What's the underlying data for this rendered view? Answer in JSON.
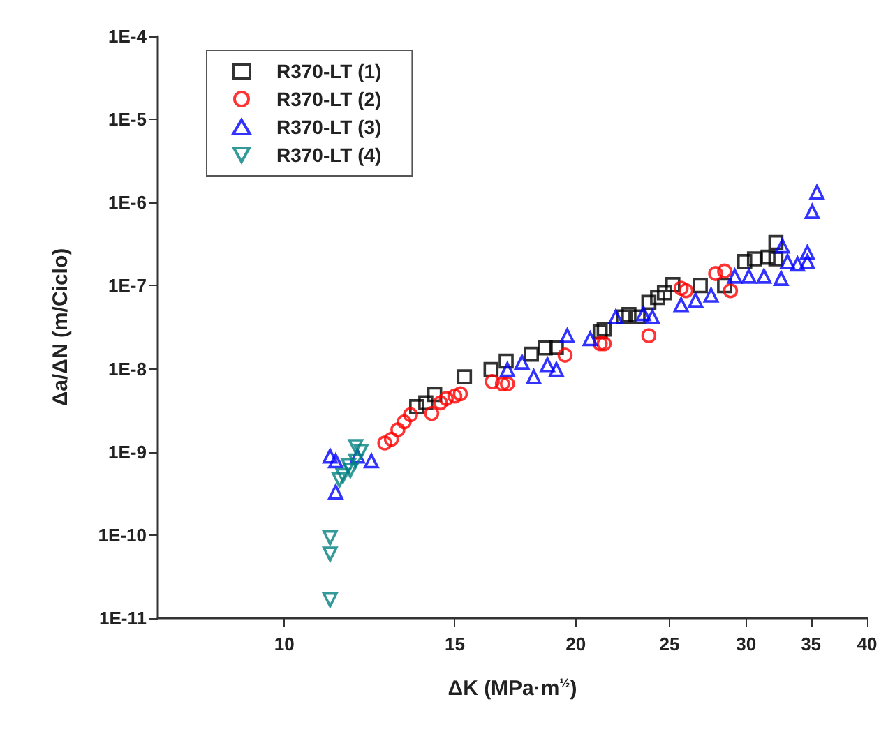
{
  "chart_data": {
    "type": "scatter",
    "xlabel": "ΔK (MPa·m$^{½}$)",
    "ylabel": "Δa/ΔN (m/Ciclo)",
    "log": "xy",
    "grid": false,
    "legend": "top left",
    "xlim": [
      7.4,
      40
    ],
    "xticks": [
      10,
      15,
      20,
      25,
      30,
      35,
      40
    ],
    "ylim": [
      1e-11,
      0.0001
    ],
    "yticks": [
      {
        "value": 1e-11,
        "label": "1E-11"
      },
      {
        "value": 1e-10,
        "label": "1E-10"
      },
      {
        "value": 1e-09,
        "label": "1E-9"
      },
      {
        "value": 1e-08,
        "label": "1E-8"
      },
      {
        "value": 1e-07,
        "label": "1E-7"
      },
      {
        "value": 1e-06,
        "label": "1E-6"
      },
      {
        "value": 1e-05,
        "label": "1E-5"
      },
      {
        "value": 0.0001,
        "label": "1E-4"
      }
    ],
    "series": [
      {
        "name": "R370-LT (1)",
        "color": "#000000",
        "marker": "square",
        "x": [
          13.7,
          14.0,
          14.3,
          15.35,
          16.35,
          16.95,
          18.0,
          18.6,
          19.1,
          21.2,
          21.4,
          22.4,
          22.7,
          23.2,
          23.8,
          24.3,
          24.7,
          25.2,
          26.9,
          28.5,
          29.9,
          30.6,
          31.6,
          32.2,
          32.2
        ],
        "values": [
          3.5e-09,
          3.9e-09,
          4.9e-09,
          8e-09,
          9.8e-09,
          1.24e-08,
          1.5e-08,
          1.78e-08,
          1.8e-08,
          2.8e-08,
          3e-08,
          4.2e-08,
          4.5e-08,
          4.2e-08,
          6.3e-08,
          7.2e-08,
          8.2e-08,
          1.03e-07,
          1e-07,
          1e-07,
          1.95e-07,
          2.1e-07,
          2.2e-07,
          3.3e-07,
          2.1e-07
        ]
      },
      {
        "name": "R370-LT (2)",
        "color": "#ff0000",
        "marker": "circle",
        "x": [
          12.7,
          12.9,
          13.1,
          13.3,
          13.5,
          14.2,
          14.5,
          14.7,
          15.0,
          15.2,
          16.4,
          16.8,
          17.0,
          19.5,
          21.2,
          21.4,
          23.8,
          25.7,
          26.0,
          27.9,
          28.5,
          28.9
        ],
        "values": [
          1.28e-09,
          1.42e-09,
          1.85e-09,
          2.3e-09,
          2.8e-09,
          2.9e-09,
          3.9e-09,
          4.4e-09,
          4.7e-09,
          5e-09,
          7e-09,
          6.6e-09,
          6.6e-09,
          1.46e-08,
          2e-08,
          2e-08,
          2.5e-08,
          9.3e-08,
          8.7e-08,
          1.4e-07,
          1.5e-07,
          8.7e-08
        ]
      },
      {
        "name": "R370-LT (3)",
        "color": "#0000ff",
        "marker": "triangle",
        "x": [
          11.15,
          11.3,
          11.3,
          11.9,
          12.3,
          17.0,
          17.6,
          18.1,
          18.7,
          19.1,
          19.6,
          20.7,
          22.0,
          23.5,
          24.0,
          25.7,
          26.6,
          27.6,
          29.2,
          30.2,
          31.3,
          32.6,
          32.7,
          33.1,
          33.9,
          34.7,
          34.7,
          35.1,
          35.5
        ],
        "values": [
          8.9e-10,
          7.8e-10,
          3.3e-10,
          8.9e-10,
          7.8e-10,
          9.8e-09,
          1.2e-08,
          8e-09,
          1.12e-08,
          9.8e-09,
          2.5e-08,
          2.3e-08,
          4.2e-08,
          4.6e-08,
          4.2e-08,
          5.9e-08,
          6.7e-08,
          7.7e-08,
          1.3e-07,
          1.3e-07,
          1.3e-07,
          1.22e-07,
          3e-07,
          1.95e-07,
          1.82e-07,
          1.95e-07,
          2.5e-07,
          7.8e-07,
          1.33e-06
        ]
      },
      {
        "name": "R370-LT (4)",
        "color": "#008080",
        "marker": "triangle_down",
        "x": [
          11.15,
          11.15,
          11.15,
          11.4,
          11.5,
          11.65,
          11.7,
          11.85,
          11.85,
          12.0
        ],
        "values": [
          9.3e-11,
          5.9e-11,
          1.66e-11,
          4.6e-10,
          5.2e-10,
          6.8e-10,
          6e-10,
          7.8e-10,
          1.16e-09,
          1.02e-09
        ]
      }
    ]
  }
}
